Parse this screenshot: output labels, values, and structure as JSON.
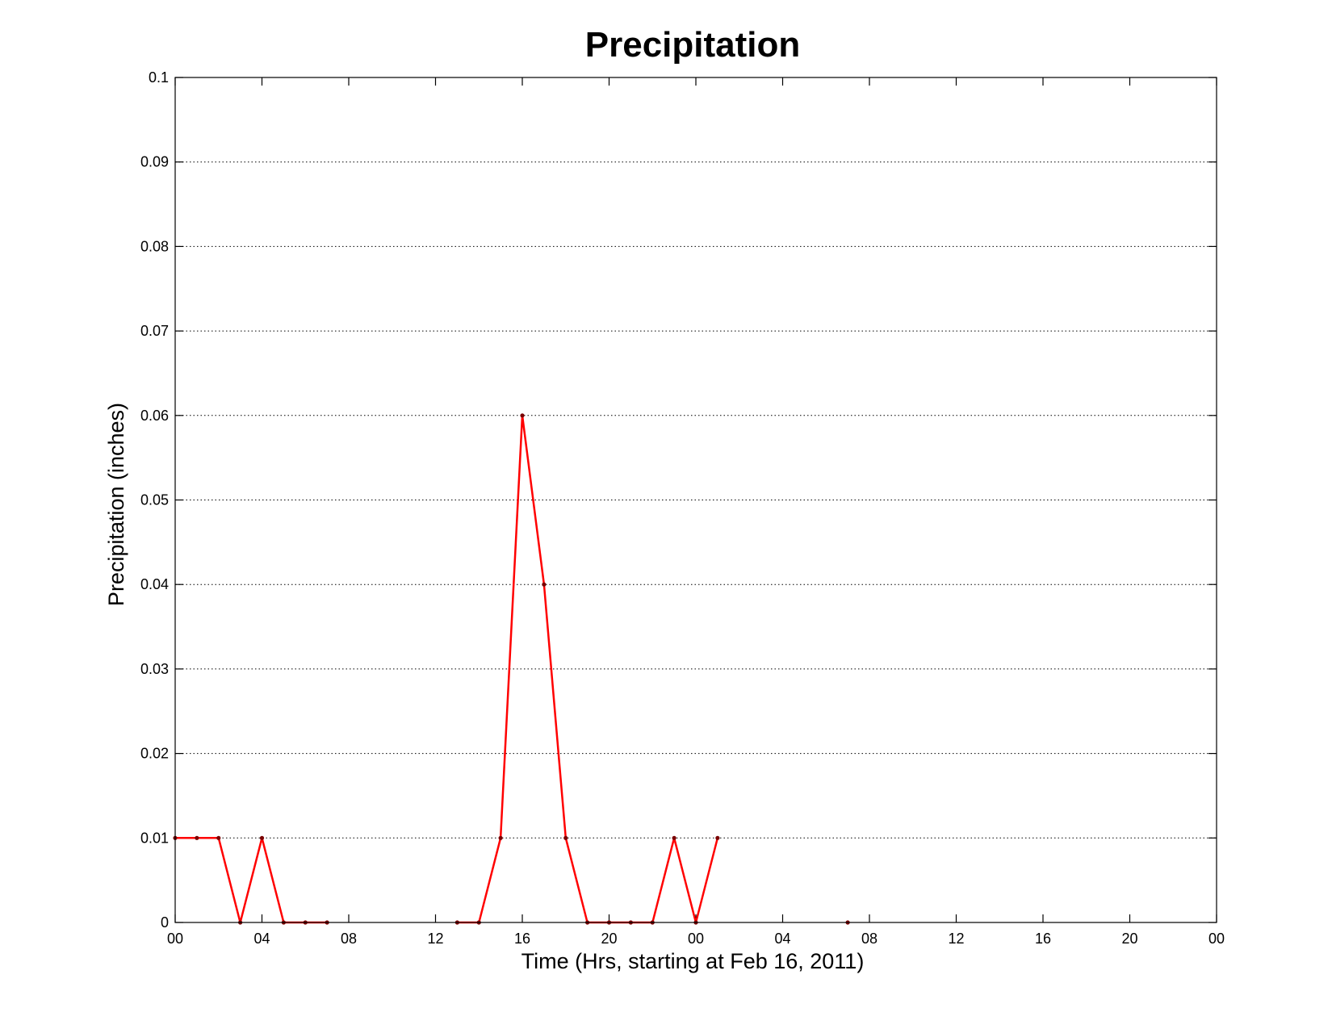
{
  "chart_data": {
    "type": "line",
    "title": "Precipitation",
    "xlabel": "Time (Hrs, starting at Feb 16, 2011)",
    "ylabel": "Precipitation (inches)",
    "xlim": [
      0,
      48
    ],
    "ylim": [
      0,
      0.1
    ],
    "grid": true,
    "x_ticks": [
      0,
      4,
      8,
      12,
      16,
      20,
      24,
      28,
      32,
      36,
      40,
      44,
      48
    ],
    "x_tick_labels": [
      "00",
      "04",
      "08",
      "12",
      "16",
      "20",
      "00",
      "04",
      "08",
      "12",
      "16",
      "20",
      "00"
    ],
    "y_ticks": [
      0,
      0.01,
      0.02,
      0.03,
      0.04,
      0.05,
      0.06,
      0.07,
      0.08,
      0.09,
      0.1
    ],
    "y_tick_labels": [
      "0",
      "0.01",
      "0.02",
      "0.03",
      "0.04",
      "0.05",
      "0.06",
      "0.07",
      "0.08",
      "0.09",
      "0.1"
    ],
    "line_color": "#ff0000",
    "marker_color": "#7a0000",
    "series": [
      {
        "x": [
          0,
          1,
          2,
          3,
          4,
          5,
          6,
          7,
          8,
          9,
          10,
          11,
          12,
          13,
          14,
          15,
          16,
          17,
          18,
          19,
          20,
          21,
          22,
          23,
          24,
          25,
          26,
          27,
          28,
          29,
          30,
          31
        ],
        "values": [
          0.01,
          0.01,
          0.01,
          0,
          0.01,
          0,
          0,
          0,
          null,
          null,
          null,
          null,
          null,
          0,
          0,
          0.01,
          0.06,
          0.04,
          0.01,
          0,
          0,
          0,
          0,
          0.01,
          0,
          0.01,
          null,
          null,
          null,
          null,
          null,
          0
        ]
      }
    ]
  }
}
